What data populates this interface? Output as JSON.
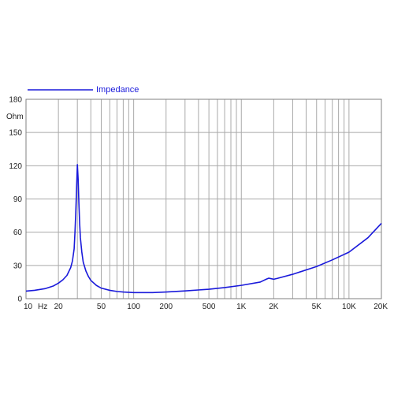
{
  "chart_data": {
    "type": "line",
    "title": "",
    "xlabel": "Hz",
    "ylabel": "Ohm",
    "x_scale": "log",
    "xlim": [
      10,
      20000
    ],
    "ylim": [
      0,
      180
    ],
    "grid": true,
    "legend_position": "top-left",
    "x_tick_labels": [
      {
        "value": 10,
        "label": "10"
      },
      {
        "value": 20,
        "label": "20"
      },
      {
        "value": 50,
        "label": "50"
      },
      {
        "value": 100,
        "label": "100"
      },
      {
        "value": 200,
        "label": "200"
      },
      {
        "value": 500,
        "label": "500"
      },
      {
        "value": 1000,
        "label": "1K"
      },
      {
        "value": 2000,
        "label": "2K"
      },
      {
        "value": 5000,
        "label": "5K"
      },
      {
        "value": 10000,
        "label": "10K"
      },
      {
        "value": 20000,
        "label": "20K"
      }
    ],
    "y_ticks": [
      0,
      30,
      60,
      90,
      120,
      150,
      180
    ],
    "series": [
      {
        "name": "Impedance",
        "color": "#1a1adb",
        "points": [
          [
            10,
            6.8
          ],
          [
            12,
            7.5
          ],
          [
            15,
            9
          ],
          [
            18,
            11.5
          ],
          [
            20,
            14
          ],
          [
            22,
            17
          ],
          [
            24,
            21
          ],
          [
            26,
            28
          ],
          [
            27,
            34
          ],
          [
            28,
            45
          ],
          [
            28.5,
            60
          ],
          [
            29,
            78
          ],
          [
            29.5,
            100
          ],
          [
            30,
            121
          ],
          [
            30.5,
            108
          ],
          [
            31,
            86
          ],
          [
            31.5,
            68
          ],
          [
            32,
            55
          ],
          [
            33,
            42
          ],
          [
            34,
            33
          ],
          [
            36,
            25
          ],
          [
            38,
            20
          ],
          [
            40,
            16.5
          ],
          [
            45,
            12
          ],
          [
            50,
            9.5
          ],
          [
            60,
            7.5
          ],
          [
            70,
            6.5
          ],
          [
            80,
            6
          ],
          [
            100,
            5.5
          ],
          [
            150,
            5.5
          ],
          [
            200,
            6
          ],
          [
            300,
            7
          ],
          [
            500,
            8.5
          ],
          [
            700,
            10
          ],
          [
            1000,
            12
          ],
          [
            1500,
            15
          ],
          [
            1700,
            17.5
          ],
          [
            1800,
            18.5
          ],
          [
            1900,
            18
          ],
          [
            2000,
            17.5
          ],
          [
            2200,
            18.5
          ],
          [
            3000,
            22
          ],
          [
            5000,
            29
          ],
          [
            7000,
            35
          ],
          [
            10000,
            42
          ],
          [
            15000,
            55
          ],
          [
            20000,
            68
          ]
        ]
      }
    ]
  }
}
